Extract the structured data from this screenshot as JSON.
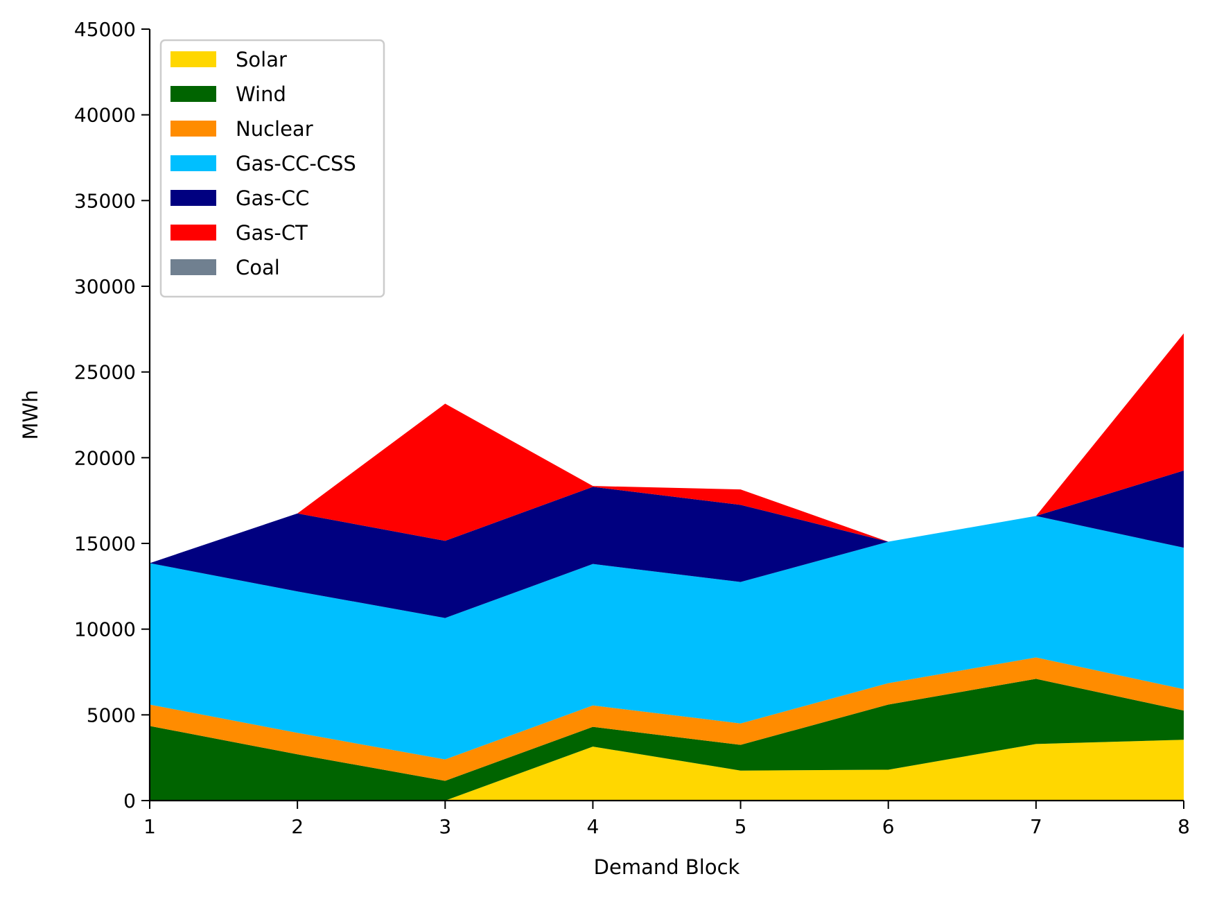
{
  "chart_data": {
    "type": "area",
    "stacked": true,
    "title": "",
    "xlabel": "Demand Block",
    "ylabel": "MWh",
    "x": [
      1,
      2,
      3,
      4,
      5,
      6,
      7,
      8
    ],
    "xlim": [
      1,
      8
    ],
    "ylim": [
      0,
      45000
    ],
    "xticks": [
      "1",
      "2",
      "3",
      "4",
      "5",
      "6",
      "7",
      "8"
    ],
    "yticks": [
      "0",
      "5000",
      "10000",
      "15000",
      "20000",
      "25000",
      "30000",
      "35000",
      "40000",
      "45000"
    ],
    "grid": false,
    "legend_position": "top-left",
    "series": [
      {
        "name": "Solar",
        "color": "#FFD700",
        "values": [
          0,
          0,
          0,
          3150,
          1750,
          1800,
          3300,
          3550
        ]
      },
      {
        "name": "Wind",
        "color": "#006400",
        "values": [
          4350,
          2700,
          1150,
          1150,
          1500,
          3800,
          3800,
          1700
        ]
      },
      {
        "name": "Nuclear",
        "color": "#FF8C00",
        "values": [
          1250,
          1250,
          1250,
          1250,
          1250,
          1250,
          1250,
          1250
        ]
      },
      {
        "name": "Gas-CC-CSS",
        "color": "#00BFFF",
        "values": [
          8250,
          8250,
          8250,
          8250,
          8250,
          8250,
          8250,
          8250
        ]
      },
      {
        "name": "Gas-CC",
        "color": "#000080",
        "values": [
          0,
          4550,
          4500,
          4500,
          4500,
          0,
          0,
          4500
        ]
      },
      {
        "name": "Gas-CT",
        "color": "#FF0000",
        "values": [
          0,
          0,
          8000,
          50,
          900,
          0,
          0,
          8000
        ]
      },
      {
        "name": "Coal",
        "color": "#708090",
        "values": [
          0,
          0,
          0,
          0,
          0,
          0,
          0,
          0
        ]
      }
    ]
  }
}
